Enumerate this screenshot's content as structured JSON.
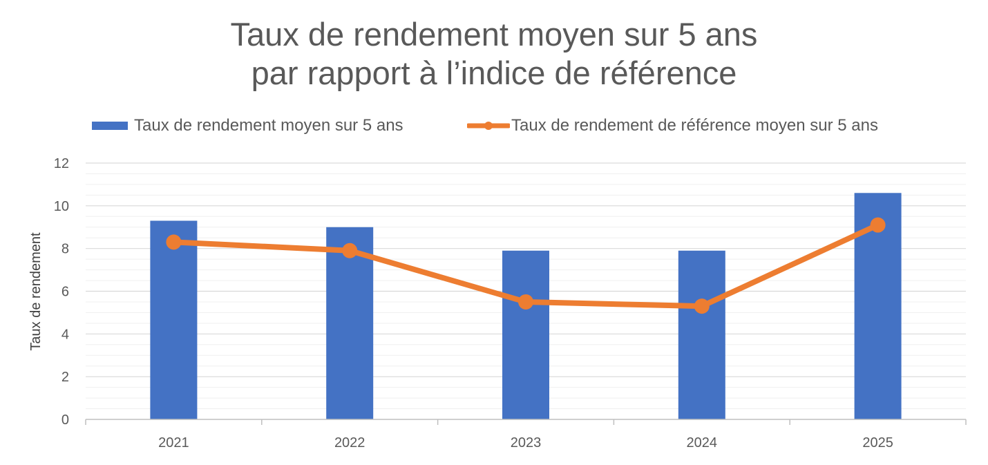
{
  "colors": {
    "bar": "#4472C4",
    "line": "#ED7D31",
    "text": "#595959",
    "grid_major": "#D9D9D9",
    "grid_minor": "#EFEFEF",
    "axis": "#BFBFBF"
  },
  "chart_data": {
    "type": "bar",
    "title_lines": [
      "Taux de rendement moyen sur 5 ans",
      "par rapport à l’indice de référence"
    ],
    "xlabel": "",
    "ylabel": "Taux de rendement",
    "categories": [
      "2021",
      "2022",
      "2023",
      "2024",
      "2025"
    ],
    "ylim": [
      0,
      12
    ],
    "y_ticks": [
      0,
      2,
      4,
      6,
      8,
      10,
      12
    ],
    "y_tick_labels": [
      "0",
      "2",
      "4",
      "6",
      "8",
      "10",
      "12"
    ],
    "grid": true,
    "legend_position": "top",
    "series": [
      {
        "name": "Taux de rendement moyen sur 5 ans",
        "type": "bar",
        "color": "#4472C4",
        "values": [
          9.3,
          9.0,
          7.9,
          7.9,
          10.6
        ]
      },
      {
        "name": "Taux de rendement de référence moyen sur 5 ans",
        "type": "line",
        "color": "#ED7D31",
        "values": [
          8.3,
          7.9,
          5.5,
          5.3,
          9.1
        ]
      }
    ]
  }
}
